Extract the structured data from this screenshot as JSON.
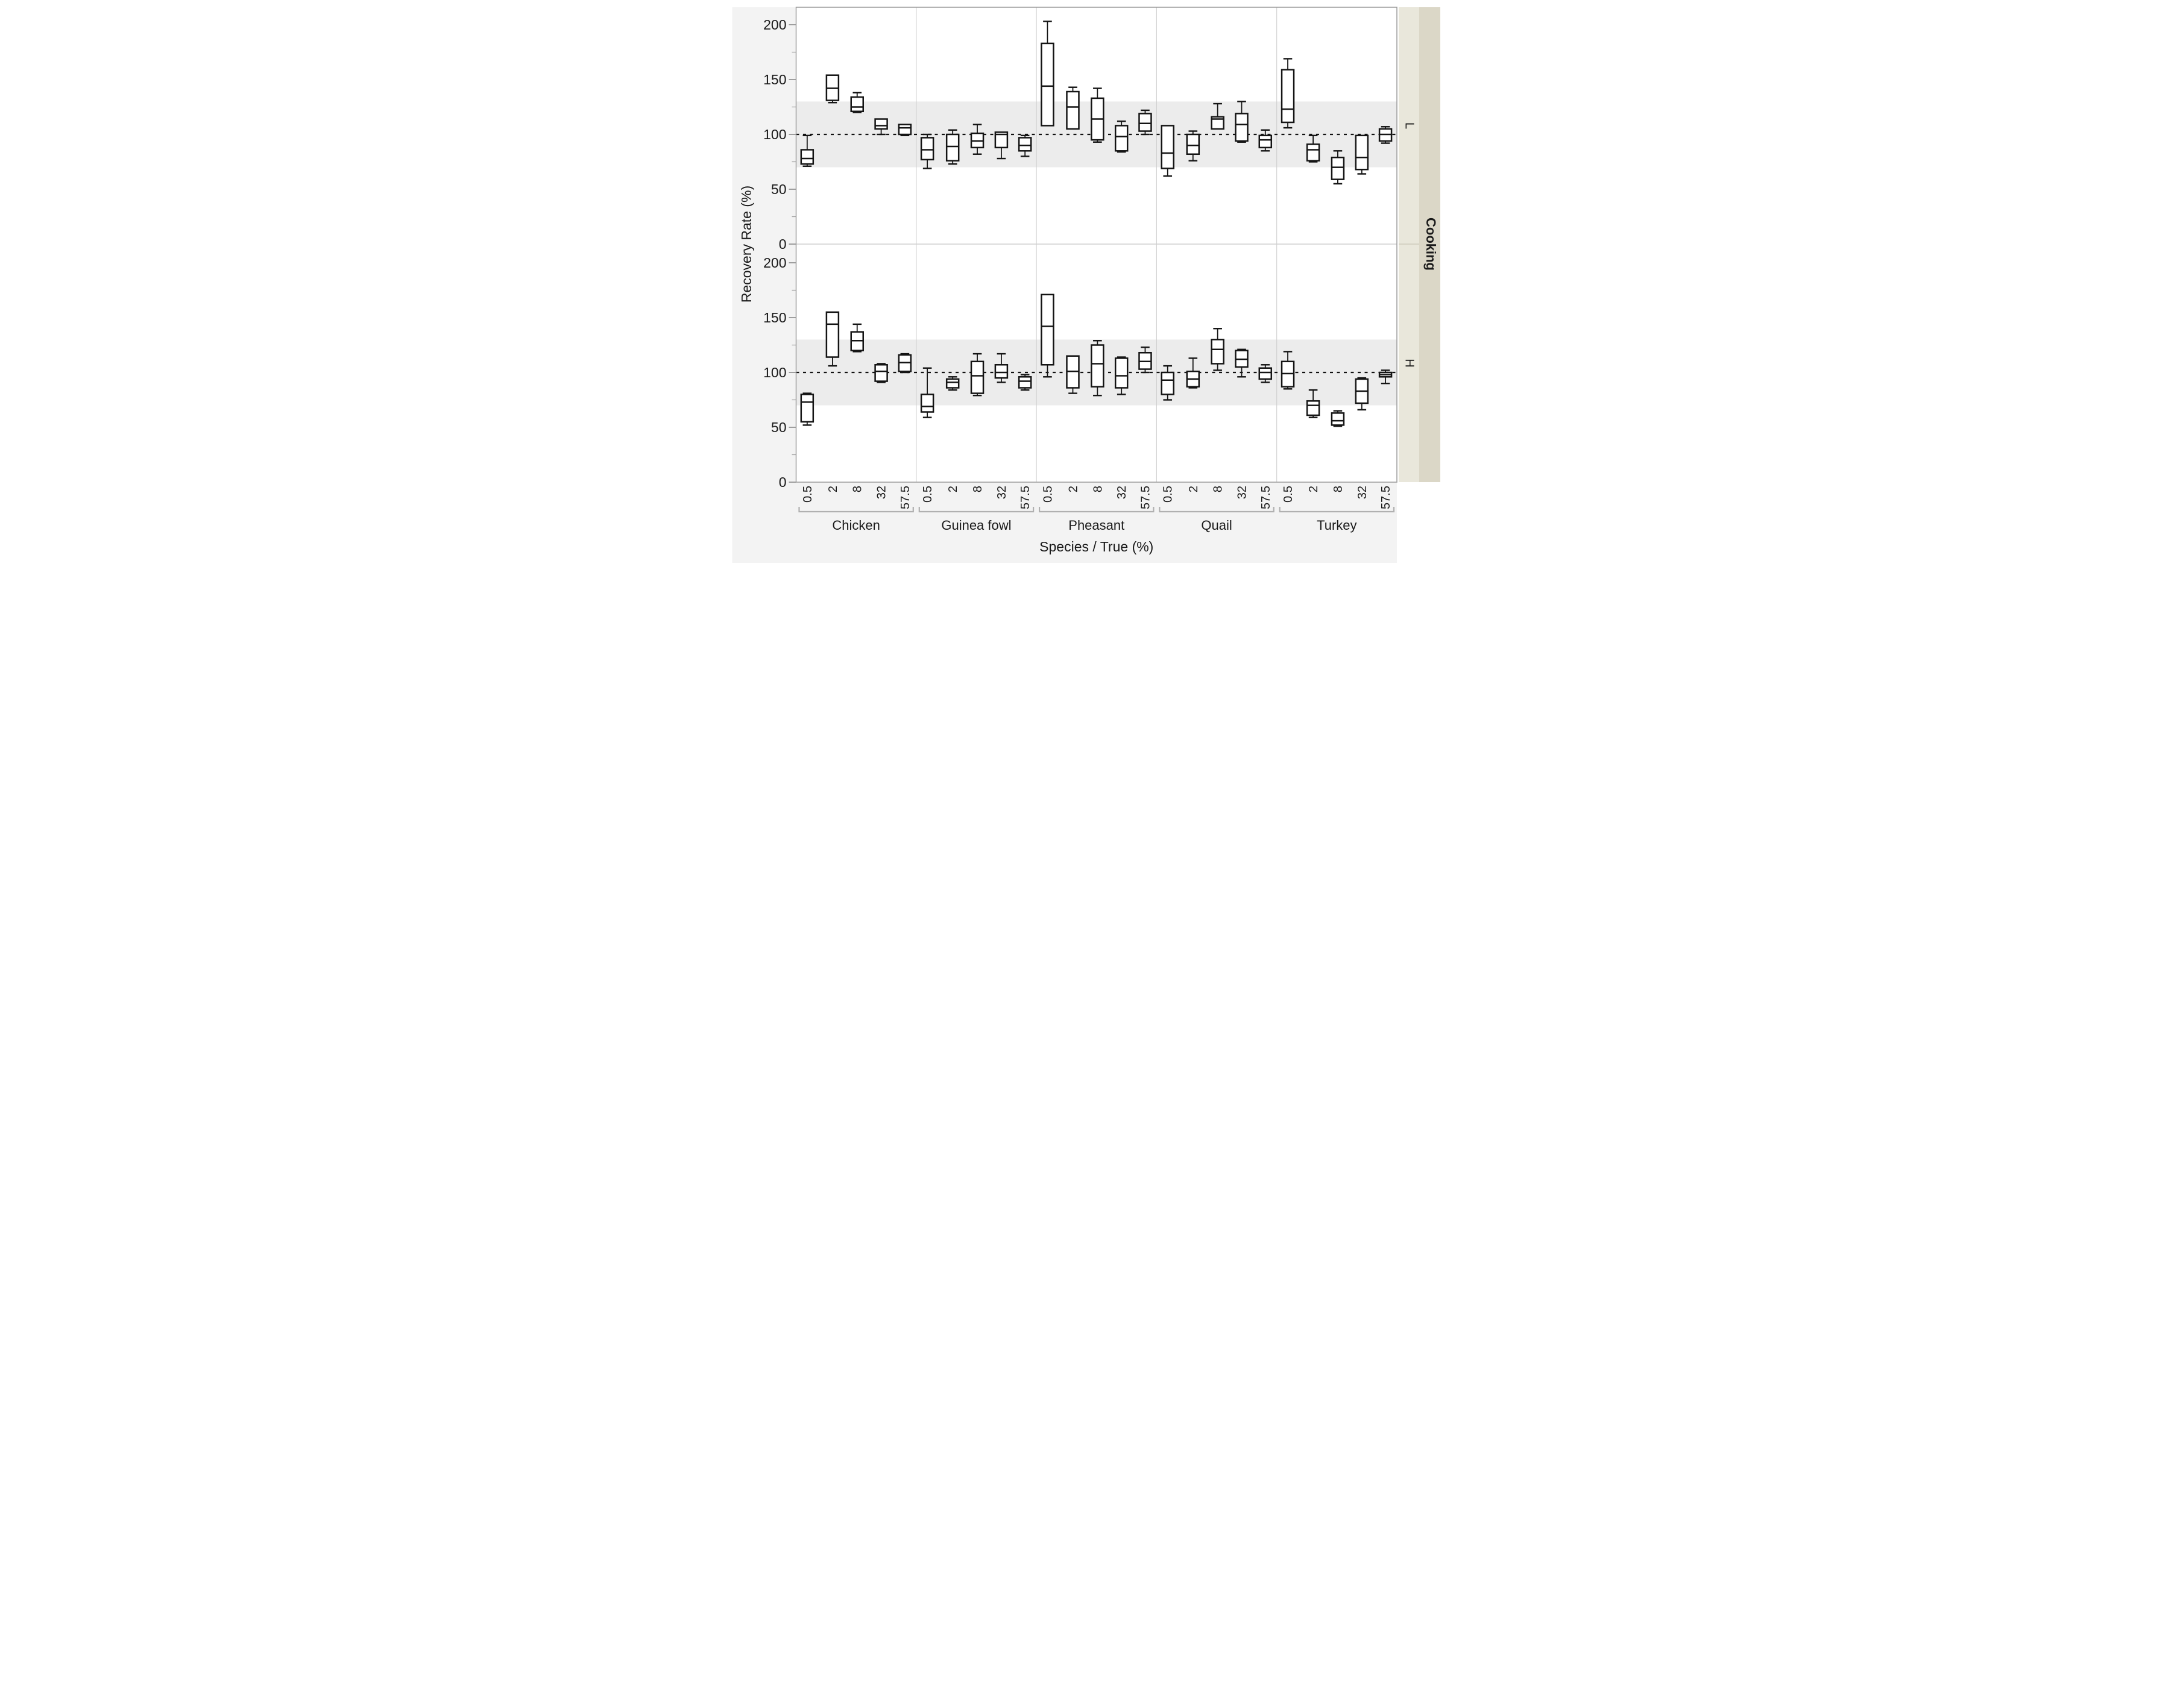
{
  "figure": {
    "kind": "grouped box plot trellis (JMP style)",
    "background": "#ffffff",
    "gutter_color": "#f3f3f3",
    "panel_strip_inner_color": "#e9e7db",
    "panel_strip_outer_color": "#dbd7c7",
    "band_color": "#ececec",
    "box_stroke_color": "#141414",
    "frame_color": "#9b9b9b",
    "group_divider_color": "#cfcfcf",
    "tick_color": "#7a7a7a",
    "reference_line_color": "#111111"
  },
  "chart_data": {
    "type": "boxplot",
    "title": "",
    "xlabel": "Species / True (%)",
    "ylabel": "Recovery Rate (%)",
    "panel_variable": "Cooking",
    "panel_labels": [
      "L",
      "H"
    ],
    "species": [
      "Chicken",
      "Guinea fowl",
      "Pheasant",
      "Quail",
      "Turkey"
    ],
    "levels": [
      "0.5",
      "2",
      "8",
      "32",
      "57.5"
    ],
    "y_major_ticks": [
      0,
      50,
      100,
      150,
      200
    ],
    "y_minor_ticks": [
      25,
      75,
      125,
      175
    ],
    "y_panel_range": [
      0,
      216
    ],
    "reference_line": 100,
    "shaded_band": [
      70,
      130
    ],
    "legend": "none",
    "grid": "group dividers only",
    "box_stats_order": [
      "min",
      "q1",
      "median",
      "q3",
      "max"
    ],
    "panels": [
      {
        "label": "L",
        "values": [
          [
            [
              71,
              73,
              78,
              86,
              99
            ],
            [
              129,
              131,
              142,
              154,
              154
            ],
            [
              120,
              121,
              125,
              134,
              138
            ],
            [
              100,
              105,
              108,
              114,
              114
            ],
            [
              99,
              100,
              106,
              109,
              109
            ]
          ],
          [
            [
              69,
              77,
              86,
              97,
              100
            ],
            [
              73,
              76,
              89,
              100,
              104
            ],
            [
              82,
              88,
              94,
              101,
              109
            ],
            [
              78,
              88,
              100,
              102,
              102
            ],
            [
              80,
              85,
              90,
              97,
              99
            ]
          ],
          [
            [
              108,
              108,
              144,
              183,
              203
            ],
            [
              105,
              105,
              125,
              139,
              143
            ],
            [
              93,
              95,
              114,
              133,
              142
            ],
            [
              84,
              85,
              98,
              108,
              112
            ],
            [
              100,
              103,
              110,
              119,
              122
            ]
          ],
          [
            [
              62,
              69,
              83,
              108,
              108
            ],
            [
              76,
              82,
              90,
              100,
              103
            ],
            [
              105,
              105,
              114,
              116,
              128
            ],
            [
              93,
              94,
              109,
              119,
              130
            ],
            [
              85,
              88,
              95,
              99,
              104
            ]
          ],
          [
            [
              106,
              111,
              123,
              159,
              169
            ],
            [
              75,
              76,
              86,
              91,
              99
            ],
            [
              55,
              59,
              70,
              79,
              85
            ],
            [
              64,
              68,
              79,
              99,
              99
            ],
            [
              92,
              94,
              100,
              105,
              107
            ]
          ]
        ]
      },
      {
        "label": "H",
        "values": [
          [
            [
              52,
              55,
              73,
              80,
              81
            ],
            [
              106,
              114,
              144,
              155,
              155
            ],
            [
              119,
              120,
              129,
              137,
              144
            ],
            [
              91,
              92,
              101,
              107,
              108
            ],
            [
              100,
              101,
              109,
              116,
              117
            ]
          ],
          [
            [
              59,
              64,
              69,
              80,
              104
            ],
            [
              84,
              86,
              91,
              94,
              96
            ],
            [
              79,
              81,
              97,
              110,
              117
            ],
            [
              91,
              95,
              100,
              107,
              117
            ],
            [
              84,
              86,
              92,
              96,
              98
            ]
          ],
          [
            [
              96,
              107,
              142,
              171,
              171
            ],
            [
              81,
              86,
              101,
              115,
              115
            ],
            [
              79,
              87,
              108,
              125,
              129
            ],
            [
              80,
              86,
              97,
              113,
              114
            ],
            [
              100,
              103,
              110,
              118,
              123
            ]
          ],
          [
            [
              75,
              80,
              93,
              100,
              106
            ],
            [
              86,
              87,
              94,
              101,
              113
            ],
            [
              102,
              108,
              121,
              130,
              140
            ],
            [
              96,
              105,
              112,
              120,
              121
            ],
            [
              91,
              94,
              100,
              104,
              107
            ]
          ],
          [
            [
              85,
              87,
              99,
              110,
              119
            ],
            [
              59,
              61,
              70,
              74,
              84
            ],
            [
              51,
              52,
              56,
              63,
              65
            ],
            [
              66,
              72,
              83,
              94,
              95
            ],
            [
              90,
              96,
              98,
              100,
              102
            ]
          ]
        ]
      }
    ]
  }
}
